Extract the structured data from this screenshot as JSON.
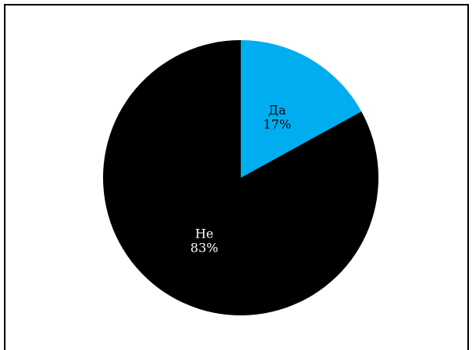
{
  "chart_data": {
    "type": "pie",
    "title": "",
    "slices": [
      {
        "label": "Да",
        "value": 17,
        "percent_label": "17%",
        "color": "#00AEEF",
        "text_color": "#000000"
      },
      {
        "label": "Не",
        "value": 83,
        "percent_label": "83%",
        "color": "#000000",
        "text_color": "#FFFFFF"
      }
    ],
    "start_angle_deg": 0,
    "direction": "clockwise",
    "legend": "none"
  }
}
